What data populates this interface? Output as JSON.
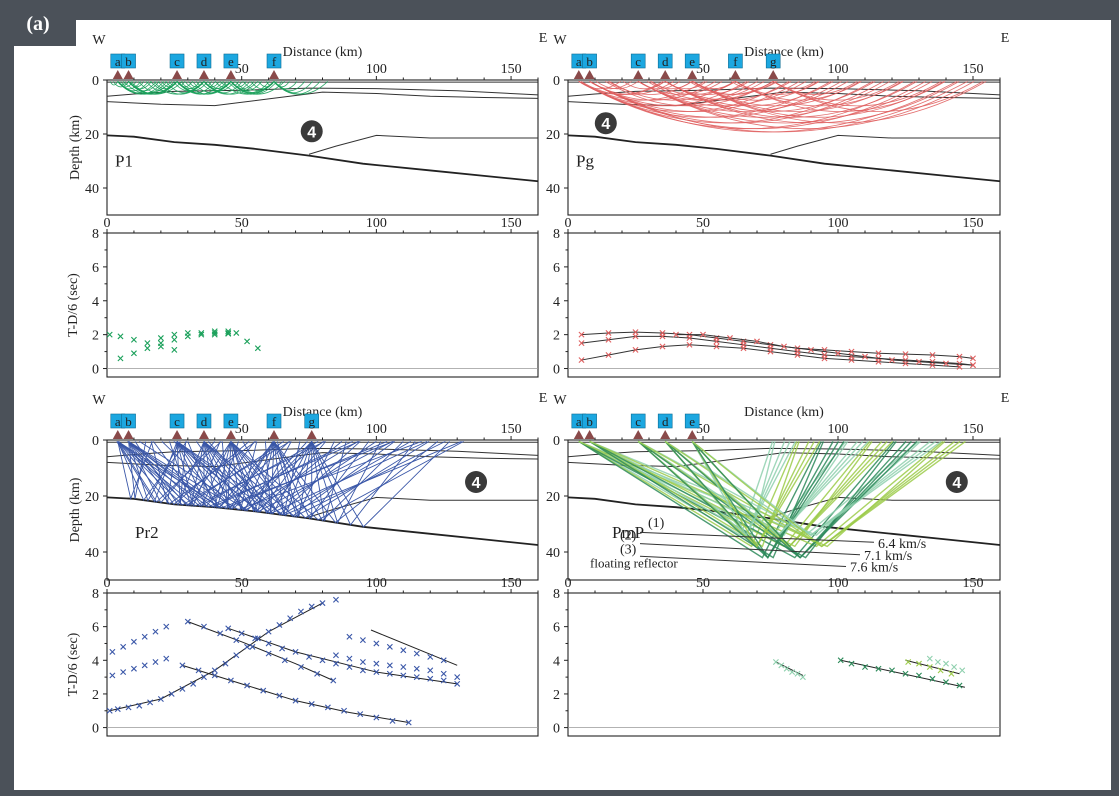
{
  "figure_label": "(a)",
  "colors": {
    "frame": "#4b5159",
    "station_box": "#1ca7e0",
    "station_marker": "#8a4a4a",
    "model_body_marker": "#3a3a3a",
    "green": "#1aa05a",
    "red": "#e06060",
    "blue": "#3a57a8",
    "pmp_dark": "#2d8a5a",
    "pmp_mid": "#9ccb4a",
    "pmp_light": "#8fd0ae"
  },
  "chart_data": [
    {
      "id": "P1",
      "type": "scatter",
      "title": "P1",
      "xlabel": "Distance (km)",
      "ylabel": "Depth (km)",
      "xlim": [
        0,
        160
      ],
      "ylim": [
        50,
        0
      ],
      "x_ticks": [
        "50",
        "100",
        "150"
      ],
      "y_ticks": [
        "0",
        "20",
        "40"
      ],
      "direction_left": "W",
      "direction_right": "E",
      "stations": [
        {
          "label": "a",
          "x": 4
        },
        {
          "label": "b",
          "x": 8
        },
        {
          "label": "c",
          "x": 26
        },
        {
          "label": "d",
          "x": 36
        },
        {
          "label": "e",
          "x": 46
        },
        {
          "label": "f",
          "x": 62
        }
      ],
      "body_marker": {
        "label": "4",
        "x": 76,
        "depth": 19
      },
      "ray_color": "green",
      "ray_sources": [
        4,
        8,
        26,
        36,
        46,
        62
      ],
      "ray_max_offset": 20,
      "ray_max_depth": 5
    },
    {
      "id": "Pg",
      "type": "scatter",
      "title": "Pg",
      "xlabel": "Distance (km)",
      "ylabel": "",
      "xlim": [
        0,
        160
      ],
      "ylim": [
        50,
        0
      ],
      "x_ticks": [
        "50",
        "100",
        "150"
      ],
      "y_ticks": [
        "0",
        "20",
        "40"
      ],
      "direction_left": "W",
      "direction_right": "E",
      "stations": [
        {
          "label": "a",
          "x": 4
        },
        {
          "label": "b",
          "x": 8
        },
        {
          "label": "c",
          "x": 26
        },
        {
          "label": "d",
          "x": 36
        },
        {
          "label": "e",
          "x": 46
        },
        {
          "label": "f",
          "x": 62
        },
        {
          "label": "g",
          "x": 76
        }
      ],
      "body_marker": {
        "label": "4",
        "x": 14,
        "depth": 16
      },
      "ray_color": "red",
      "ray_sources": [
        4,
        8,
        26,
        36,
        46,
        62,
        76
      ],
      "ray_max_offset": 140,
      "ray_max_depth": 19
    },
    {
      "id": "P1-time",
      "type": "scatter",
      "xlabel": "",
      "ylabel": "T-D/6 (sec)",
      "xlim": [
        0,
        160
      ],
      "ylim": [
        -0.5,
        8
      ],
      "x_ticks": [
        "0",
        "50",
        "100",
        "150"
      ],
      "y_ticks": [
        "0",
        "2",
        "4",
        "6",
        "8"
      ],
      "marker_color": "green",
      "picks": [
        {
          "x": [
            1,
            5,
            10,
            15,
            20,
            25
          ],
          "y": [
            2.0,
            1.9,
            1.7,
            1.5,
            1.3,
            1.1
          ]
        },
        {
          "x": [
            5,
            10,
            15,
            20,
            25,
            30,
            35,
            40,
            45
          ],
          "y": [
            0.6,
            0.9,
            1.2,
            1.5,
            1.7,
            1.9,
            2.0,
            2.1,
            2.1
          ]
        },
        {
          "x": [
            20,
            25,
            30,
            35,
            40,
            45
          ],
          "y": [
            1.8,
            2.0,
            2.1,
            2.1,
            2.2,
            2.2
          ]
        },
        {
          "x": [
            40,
            45,
            48,
            52,
            56
          ],
          "y": [
            2.0,
            2.05,
            2.1,
            1.6,
            1.2
          ]
        }
      ]
    },
    {
      "id": "Pg-time",
      "type": "scatter",
      "xlabel": "",
      "ylabel": "",
      "xlim": [
        0,
        160
      ],
      "ylim": [
        -0.5,
        8
      ],
      "x_ticks": [
        "0",
        "50",
        "100",
        "150"
      ],
      "y_ticks": [
        "0",
        "2",
        "4",
        "6",
        "8"
      ],
      "marker_color": "red",
      "picks": [
        {
          "x": [
            5,
            15,
            25,
            35,
            45,
            55,
            65,
            75,
            85,
            95,
            105,
            115,
            125,
            135,
            145,
            150
          ],
          "y": [
            2.0,
            2.1,
            2.15,
            2.1,
            2.0,
            1.8,
            1.6,
            1.4,
            1.2,
            1.1,
            1.0,
            0.9,
            0.85,
            0.8,
            0.7,
            0.6
          ]
        },
        {
          "x": [
            5,
            15,
            25,
            35,
            45,
            55,
            65,
            75,
            85,
            95,
            105,
            115,
            125,
            135,
            145,
            150
          ],
          "y": [
            1.5,
            1.7,
            1.9,
            1.9,
            1.8,
            1.6,
            1.4,
            1.2,
            1.0,
            0.8,
            0.7,
            0.6,
            0.5,
            0.4,
            0.3,
            0.2
          ]
        },
        {
          "x": [
            5,
            15,
            25,
            35,
            45,
            55,
            65,
            75,
            85,
            95,
            105,
            115,
            125,
            135,
            145
          ],
          "y": [
            0.5,
            0.8,
            1.1,
            1.3,
            1.4,
            1.3,
            1.2,
            1.0,
            0.8,
            0.6,
            0.5,
            0.4,
            0.3,
            0.2,
            0.1
          ]
        },
        {
          "x": [
            40,
            50,
            60,
            70,
            80,
            90,
            100,
            110,
            120,
            130,
            140,
            150
          ],
          "y": [
            2.0,
            2.0,
            1.8,
            1.6,
            1.3,
            1.1,
            0.9,
            0.7,
            0.5,
            0.4,
            0.3,
            0.2
          ]
        }
      ]
    },
    {
      "id": "Pr2",
      "type": "scatter",
      "title": "Pr2",
      "xlabel": "Distance (km)",
      "ylabel": "Depth (km)",
      "xlim": [
        0,
        160
      ],
      "ylim": [
        50,
        0
      ],
      "x_ticks": [
        "50",
        "100",
        "150"
      ],
      "y_ticks": [
        "0",
        "20",
        "40"
      ],
      "direction_left": "W",
      "direction_right": "E",
      "stations": [
        {
          "label": "a",
          "x": 4
        },
        {
          "label": "b",
          "x": 8
        },
        {
          "label": "c",
          "x": 26
        },
        {
          "label": "d",
          "x": 36
        },
        {
          "label": "e",
          "x": 46
        },
        {
          "label": "f",
          "x": 62
        },
        {
          "label": "g",
          "x": 76
        }
      ],
      "body_marker": {
        "label": "4",
        "x": 137,
        "depth": 15
      },
      "ray_color": "blue",
      "ray_sources": [
        4,
        8,
        26,
        36,
        46,
        62,
        76
      ],
      "reflection_points": [
        12,
        20,
        28,
        36,
        44,
        52,
        60,
        68,
        76,
        84,
        92,
        100,
        108,
        116
      ]
    },
    {
      "id": "PmP",
      "type": "scatter",
      "title": "PmP",
      "xlabel": "Distance (km)",
      "ylabel": "",
      "xlim": [
        0,
        160
      ],
      "ylim": [
        50,
        0
      ],
      "x_ticks": [
        "50",
        "100",
        "150"
      ],
      "y_ticks": [
        "0",
        "20",
        "40"
      ],
      "direction_left": "W",
      "direction_right": "E",
      "stations": [
        {
          "label": "a",
          "x": 4
        },
        {
          "label": "b",
          "x": 8
        },
        {
          "label": "c",
          "x": 26
        },
        {
          "label": "d",
          "x": 36
        },
        {
          "label": "e",
          "x": 46
        }
      ],
      "body_marker": {
        "label": "4",
        "x": 144,
        "depth": 15
      },
      "annotations": {
        "reflector_1": "(1)",
        "reflector_2": "(2)",
        "reflector_3": "(3)",
        "floating": "floating  reflector",
        "v1": "6.4 km/s",
        "v2": "7.1 km/s",
        "v3": "7.6 km/s"
      }
    },
    {
      "id": "Pr2-time",
      "type": "scatter",
      "xlabel": "",
      "ylabel": "T-D/6 (sec)",
      "xlim": [
        0,
        160
      ],
      "ylim": [
        -0.5,
        8
      ],
      "x_ticks": [
        "0",
        "50",
        "100",
        "150"
      ],
      "y_ticks": [
        "0",
        "2",
        "4",
        "6",
        "8"
      ],
      "marker_color": "blue",
      "picks": [
        {
          "x": [
            1,
            4,
            8,
            12,
            16,
            20,
            24,
            28,
            32,
            36,
            40,
            44,
            48,
            52,
            56,
            60,
            64,
            68,
            72,
            76,
            80,
            85
          ],
          "y": [
            1.0,
            1.1,
            1.2,
            1.3,
            1.5,
            1.7,
            2.0,
            2.3,
            2.6,
            3.0,
            3.4,
            3.8,
            4.3,
            4.8,
            5.3,
            5.7,
            6.1,
            6.5,
            6.9,
            7.2,
            7.4,
            7.6
          ]
        },
        {
          "x": [
            2,
            6,
            10,
            14,
            18,
            22
          ],
          "y": [
            3.1,
            3.3,
            3.5,
            3.7,
            3.9,
            4.1
          ]
        },
        {
          "x": [
            2,
            6,
            10,
            14,
            18,
            22
          ],
          "y": [
            4.5,
            4.8,
            5.1,
            5.4,
            5.7,
            6.0
          ]
        },
        {
          "x": [
            28,
            34,
            40,
            46,
            52,
            58,
            64,
            70,
            76,
            82,
            88,
            94,
            100,
            106,
            112
          ],
          "y": [
            3.7,
            3.4,
            3.1,
            2.8,
            2.5,
            2.2,
            1.9,
            1.6,
            1.4,
            1.2,
            1.0,
            0.8,
            0.6,
            0.4,
            0.3
          ]
        },
        {
          "x": [
            30,
            36,
            42,
            48,
            54,
            60,
            66,
            72,
            78,
            84
          ],
          "y": [
            6.3,
            6.0,
            5.6,
            5.2,
            4.8,
            4.4,
            4.0,
            3.6,
            3.2,
            2.8
          ]
        },
        {
          "x": [
            45,
            50,
            55,
            60,
            65,
            70,
            75,
            80,
            85,
            90,
            95,
            100,
            105,
            110,
            115,
            120,
            125,
            130
          ],
          "y": [
            5.9,
            5.6,
            5.3,
            5.0,
            4.7,
            4.5,
            4.2,
            4.0,
            3.8,
            3.6,
            3.4,
            3.3,
            3.2,
            3.1,
            3.0,
            2.9,
            2.8,
            2.6
          ]
        },
        {
          "x": [
            85,
            90,
            95,
            100,
            105,
            110,
            115,
            120,
            125,
            130
          ],
          "y": [
            4.3,
            4.1,
            3.9,
            3.8,
            3.7,
            3.6,
            3.5,
            3.4,
            3.2,
            3.0
          ]
        },
        {
          "x": [
            90,
            95,
            100,
            105,
            110,
            115,
            120,
            125
          ],
          "y": [
            5.4,
            5.2,
            5.0,
            4.8,
            4.6,
            4.4,
            4.2,
            4.0
          ]
        }
      ],
      "model_curves": [
        {
          "x": [
            1,
            20,
            40,
            60,
            80
          ],
          "y": [
            1.0,
            1.7,
            3.4,
            5.7,
            7.4
          ]
        },
        {
          "x": [
            28,
            50,
            70,
            90,
            112
          ],
          "y": [
            3.7,
            2.6,
            1.6,
            0.9,
            0.3
          ]
        },
        {
          "x": [
            30,
            50,
            70,
            84
          ],
          "y": [
            6.3,
            5.1,
            3.8,
            2.8
          ]
        },
        {
          "x": [
            45,
            70,
            100,
            130
          ],
          "y": [
            5.9,
            4.5,
            3.3,
            2.6
          ]
        },
        {
          "x": [
            98,
            130
          ],
          "y": [
            5.8,
            3.7
          ]
        }
      ]
    },
    {
      "id": "PmP-time",
      "type": "scatter",
      "xlabel": "",
      "ylabel": "",
      "xlim": [
        0,
        160
      ],
      "ylim": [
        -0.5,
        8
      ],
      "x_ticks": [
        "0",
        "50",
        "100",
        "150"
      ],
      "y_ticks": [
        "0",
        "2",
        "4",
        "6",
        "8"
      ],
      "marker_color": "pmp",
      "picks": [
        {
          "x": [
            77,
            79,
            81,
            83,
            85,
            87
          ],
          "y": [
            3.9,
            3.7,
            3.5,
            3.3,
            3.2,
            3.0
          ]
        },
        {
          "x": [
            101,
            105,
            110,
            115,
            120,
            125,
            130,
            135,
            140,
            145
          ],
          "y": [
            4.0,
            3.8,
            3.6,
            3.5,
            3.4,
            3.2,
            3.1,
            2.9,
            2.7,
            2.5
          ]
        },
        {
          "x": [
            126,
            130,
            134,
            138,
            142
          ],
          "y": [
            3.9,
            3.8,
            3.6,
            3.4,
            3.2
          ]
        },
        {
          "x": [
            134,
            137,
            140,
            143,
            146
          ],
          "y": [
            4.1,
            3.9,
            3.8,
            3.6,
            3.4
          ]
        }
      ],
      "model_curves": [
        {
          "x": [
            77,
            87
          ],
          "y": [
            3.9,
            3.1
          ]
        },
        {
          "x": [
            101,
            147
          ],
          "y": [
            4.0,
            2.4
          ]
        },
        {
          "x": [
            125,
            145
          ],
          "y": [
            4.0,
            3.2
          ]
        }
      ]
    }
  ]
}
